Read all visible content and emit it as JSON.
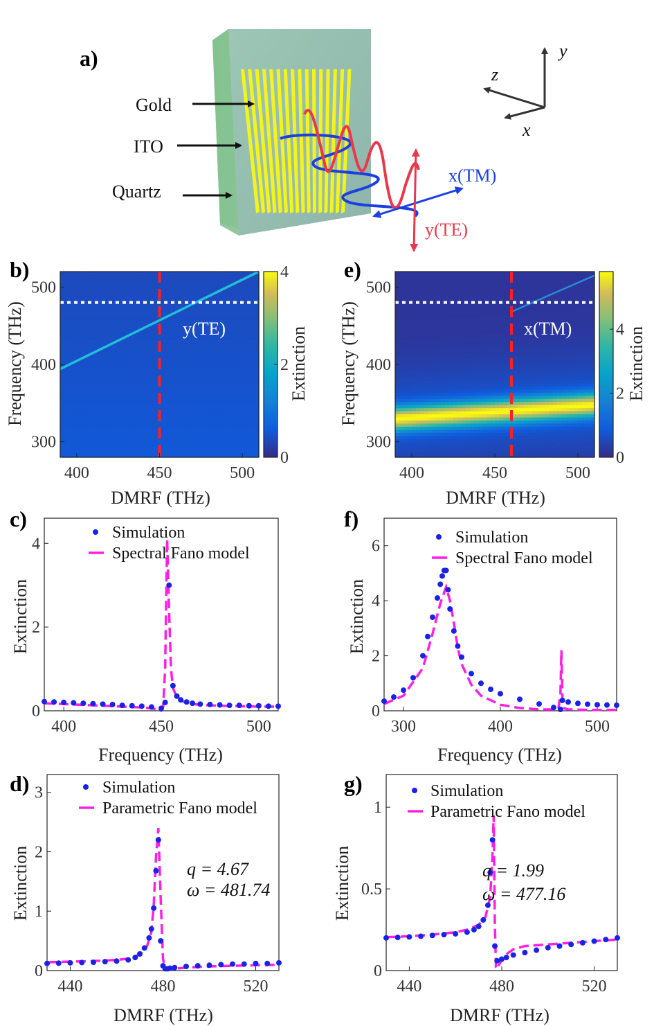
{
  "panel_labels": {
    "a": "a)",
    "b": "b)",
    "c": "c)",
    "d": "d)",
    "e": "e)",
    "f": "f)",
    "g": "g)"
  },
  "schematic": {
    "labels": {
      "gold": "Gold",
      "ito": "ITO",
      "quartz": "Quartz"
    },
    "axes": {
      "x": "x",
      "y": "y",
      "z": "z"
    },
    "polarization": {
      "tm": "x(TM)",
      "te": "y(TE)"
    },
    "colors": {
      "substrate": "#8fc49a",
      "ito": "#9fb8b0",
      "gold": "#f4f41c",
      "te_wave": "#e8384a",
      "tm_wave": "#1c3fe0"
    }
  },
  "chart_data": [
    {
      "id": "b",
      "type": "heatmap",
      "xlabel": "DMRF (THz)",
      "ylabel": "Frequency (THz)",
      "xlim": [
        390,
        510
      ],
      "ylim": [
        280,
        520
      ],
      "xticks": [
        "400",
        "450",
        "500"
      ],
      "yticks": [
        "300",
        "400",
        "500"
      ],
      "colorbar": {
        "label": "Extinction",
        "range": [
          0,
          4
        ],
        "ticks": [
          "0",
          "2",
          "4"
        ]
      },
      "annotation": "y(TE)",
      "features": {
        "mode_line": {
          "from": [
            390,
            394
          ],
          "to": [
            510,
            520
          ]
        },
        "dashed_v_x": 450,
        "dotted_h_y": 480,
        "background_level": 0.45
      }
    },
    {
      "id": "e",
      "type": "heatmap",
      "xlabel": "DMRF (THz)",
      "ylabel": "Frequency (THz)",
      "xlim": [
        390,
        510
      ],
      "ylim": [
        280,
        520
      ],
      "xticks": [
        "400",
        "450",
        "500"
      ],
      "yticks": [
        "300",
        "400",
        "500"
      ],
      "colorbar": {
        "label": "Extinction",
        "range": [
          0,
          5.8
        ],
        "ticks": [
          "0",
          "2",
          "4"
        ]
      },
      "annotation": "x(TM)",
      "features": {
        "plasmon_band": {
          "from": [
            390,
            330
          ],
          "to": [
            510,
            348
          ],
          "peak": 5.2
        },
        "mode_line": {
          "from": [
            460,
            468
          ],
          "to": [
            510,
            515
          ]
        },
        "dashed_v_x": 460,
        "dotted_h_y": 480
      }
    },
    {
      "id": "c",
      "type": "line",
      "xlabel": "Frequency (THz)",
      "ylabel": "Extinction",
      "xlim": [
        390,
        510
      ],
      "ylim": [
        0,
        4.6
      ],
      "xticks": [
        "400",
        "450",
        "500"
      ],
      "yticks": [
        "0",
        "2",
        "4"
      ],
      "legend": [
        "Simulation",
        "Spectral Fano model"
      ],
      "series": [
        {
          "name": "Simulation",
          "x": [
            390,
            395,
            400,
            405,
            410,
            415,
            420,
            425,
            430,
            435,
            440,
            445,
            450,
            452,
            454,
            456,
            458,
            460,
            463,
            466,
            470,
            475,
            480,
            485,
            490,
            495,
            500,
            505,
            510
          ],
          "values": [
            0.22,
            0.21,
            0.2,
            0.19,
            0.18,
            0.17,
            0.16,
            0.15,
            0.13,
            0.12,
            0.11,
            0.09,
            0.06,
            0.2,
            3.0,
            0.6,
            0.35,
            0.26,
            0.21,
            0.18,
            0.16,
            0.15,
            0.14,
            0.13,
            0.13,
            0.12,
            0.12,
            0.11,
            0.11
          ]
        },
        {
          "name": "Spectral Fano model",
          "x": [
            390,
            400,
            410,
            420,
            430,
            440,
            445,
            448,
            450,
            451,
            452,
            453,
            454,
            455,
            456,
            458,
            460,
            465,
            470,
            480,
            490,
            500,
            510
          ],
          "values": [
            0.18,
            0.16,
            0.14,
            0.12,
            0.1,
            0.08,
            0.06,
            0.03,
            0.0,
            0.1,
            1.0,
            4.1,
            2.4,
            1.0,
            0.55,
            0.32,
            0.24,
            0.17,
            0.14,
            0.12,
            0.11,
            0.1,
            0.1
          ]
        }
      ]
    },
    {
      "id": "f",
      "type": "line",
      "xlabel": "Frequency (THz)",
      "ylabel": "Extinction",
      "xlim": [
        280,
        520
      ],
      "ylim": [
        0,
        7
      ],
      "xticks": [
        "300",
        "400",
        "500"
      ],
      "yticks": [
        "0",
        "2",
        "4",
        "6"
      ],
      "legend": [
        "Simulation",
        "Spectral Fano model"
      ],
      "series": [
        {
          "name": "Simulation",
          "x": [
            280,
            290,
            300,
            310,
            320,
            325,
            330,
            335,
            338,
            340,
            342,
            344,
            346,
            348,
            352,
            356,
            360,
            370,
            380,
            390,
            400,
            420,
            440,
            455,
            462,
            464,
            470,
            480,
            490,
            500,
            510,
            520
          ],
          "values": [
            0.35,
            0.5,
            0.75,
            1.2,
            2.0,
            2.7,
            3.4,
            4.1,
            4.6,
            4.9,
            5.1,
            5.1,
            4.4,
            3.7,
            2.9,
            2.35,
            1.95,
            1.35,
            1.0,
            0.78,
            0.62,
            0.42,
            0.25,
            0.12,
            0.05,
            0.38,
            0.32,
            0.27,
            0.24,
            0.22,
            0.21,
            0.2
          ]
        },
        {
          "name": "Spectral Fano model",
          "x": [
            280,
            300,
            320,
            330,
            338,
            344,
            348,
            352,
            356,
            360,
            370,
            380,
            400,
            420,
            440,
            455,
            460,
            462,
            463,
            464,
            465,
            470,
            480,
            500,
            520
          ],
          "values": [
            0.25,
            0.55,
            1.55,
            2.8,
            3.9,
            4.5,
            4.0,
            3.2,
            2.3,
            1.7,
            0.95,
            0.55,
            0.22,
            0.1,
            0.05,
            0.05,
            0.1,
            0.6,
            2.2,
            0.5,
            0.1,
            0.05,
            0.04,
            0.03,
            0.03
          ]
        }
      ]
    },
    {
      "id": "d",
      "type": "line",
      "xlabel": "DMRF (THz)",
      "ylabel": "Extinction",
      "xlim": [
        430,
        530
      ],
      "ylim": [
        0,
        3.3
      ],
      "xticks": [
        "440",
        "480",
        "520"
      ],
      "yticks": [
        "0",
        "1",
        "2",
        "3"
      ],
      "legend": [
        "Simulation",
        "Parametric Fano model"
      ],
      "annotations": {
        "q": "q = 4.67",
        "omega": "ω = 481.74"
      },
      "series": [
        {
          "name": "Simulation",
          "x": [
            430,
            435,
            440,
            445,
            450,
            455,
            460,
            465,
            468,
            470,
            472,
            474,
            475,
            476,
            477,
            478,
            479,
            480,
            481,
            482,
            483,
            485,
            490,
            495,
            500,
            505,
            510,
            515,
            520,
            525,
            530
          ],
          "values": [
            0.12,
            0.125,
            0.13,
            0.135,
            0.14,
            0.15,
            0.16,
            0.18,
            0.22,
            0.28,
            0.38,
            0.55,
            0.7,
            1.05,
            1.68,
            2.2,
            0.5,
            0.08,
            0.03,
            0.03,
            0.04,
            0.05,
            0.07,
            0.08,
            0.09,
            0.1,
            0.11,
            0.11,
            0.12,
            0.12,
            0.13
          ]
        },
        {
          "name": "Parametric Fano model",
          "x": [
            430,
            440,
            450,
            460,
            465,
            470,
            473,
            475,
            476,
            477,
            478,
            479,
            480,
            481,
            482,
            485,
            490,
            500,
            510,
            520,
            530
          ],
          "values": [
            0.14,
            0.15,
            0.16,
            0.18,
            0.2,
            0.27,
            0.4,
            0.65,
            1.1,
            1.9,
            2.4,
            1.2,
            0.2,
            0.02,
            0.01,
            0.03,
            0.05,
            0.07,
            0.08,
            0.09,
            0.1
          ]
        }
      ]
    },
    {
      "id": "g",
      "type": "line",
      "xlabel": "DMRF (THz)",
      "ylabel": "Extinction",
      "xlim": [
        430,
        530
      ],
      "ylim": [
        0,
        1.2
      ],
      "xticks": [
        "440",
        "480",
        "520"
      ],
      "yticks": [
        "0",
        "0.5",
        "1"
      ],
      "legend": [
        "Simulation",
        "Parametric Fano model"
      ],
      "annotations": {
        "q": "q = 1.99",
        "omega": "ω = 477.16"
      },
      "series": [
        {
          "name": "Simulation",
          "x": [
            430,
            435,
            440,
            445,
            450,
            455,
            460,
            465,
            468,
            470,
            472,
            474,
            475,
            476,
            477,
            478,
            480,
            482,
            485,
            490,
            495,
            500,
            505,
            510,
            515,
            520,
            525,
            530
          ],
          "values": [
            0.2,
            0.203,
            0.206,
            0.21,
            0.215,
            0.22,
            0.225,
            0.235,
            0.25,
            0.27,
            0.31,
            0.4,
            0.6,
            0.8,
            0.15,
            0.06,
            0.07,
            0.08,
            0.095,
            0.11,
            0.125,
            0.14,
            0.15,
            0.16,
            0.17,
            0.18,
            0.19,
            0.2
          ]
        },
        {
          "name": "Parametric Fano model",
          "x": [
            430,
            440,
            450,
            460,
            465,
            470,
            473,
            475,
            476,
            476.5,
            477,
            477.5,
            478,
            479,
            481,
            485,
            490,
            500,
            510,
            520,
            530
          ],
          "values": [
            0.205,
            0.21,
            0.22,
            0.235,
            0.25,
            0.28,
            0.33,
            0.45,
            0.7,
            0.95,
            0.3,
            0.02,
            0.01,
            0.04,
            0.09,
            0.13,
            0.15,
            0.16,
            0.17,
            0.18,
            0.19
          ]
        }
      ]
    }
  ]
}
